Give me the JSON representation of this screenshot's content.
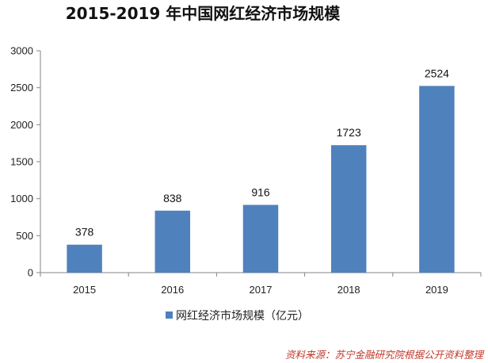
{
  "chart_data": {
    "type": "bar",
    "title": "2015-2019 年中国网红经济市场规模",
    "categories": [
      "2015",
      "2016",
      "2017",
      "2018",
      "2019"
    ],
    "series": [
      {
        "name": "网红经济市场规模（亿元）",
        "values": [
          378,
          838,
          916,
          1723,
          2524
        ],
        "color": "#4f81bd"
      }
    ],
    "ylim": [
      0,
      3000
    ],
    "yticks": [
      0,
      500,
      1000,
      1500,
      2000,
      2500,
      3000
    ],
    "grid": false,
    "legend": "bottom",
    "data_labels": true
  },
  "source": "资料来源：苏宁金融研究院根据公开资料整理"
}
